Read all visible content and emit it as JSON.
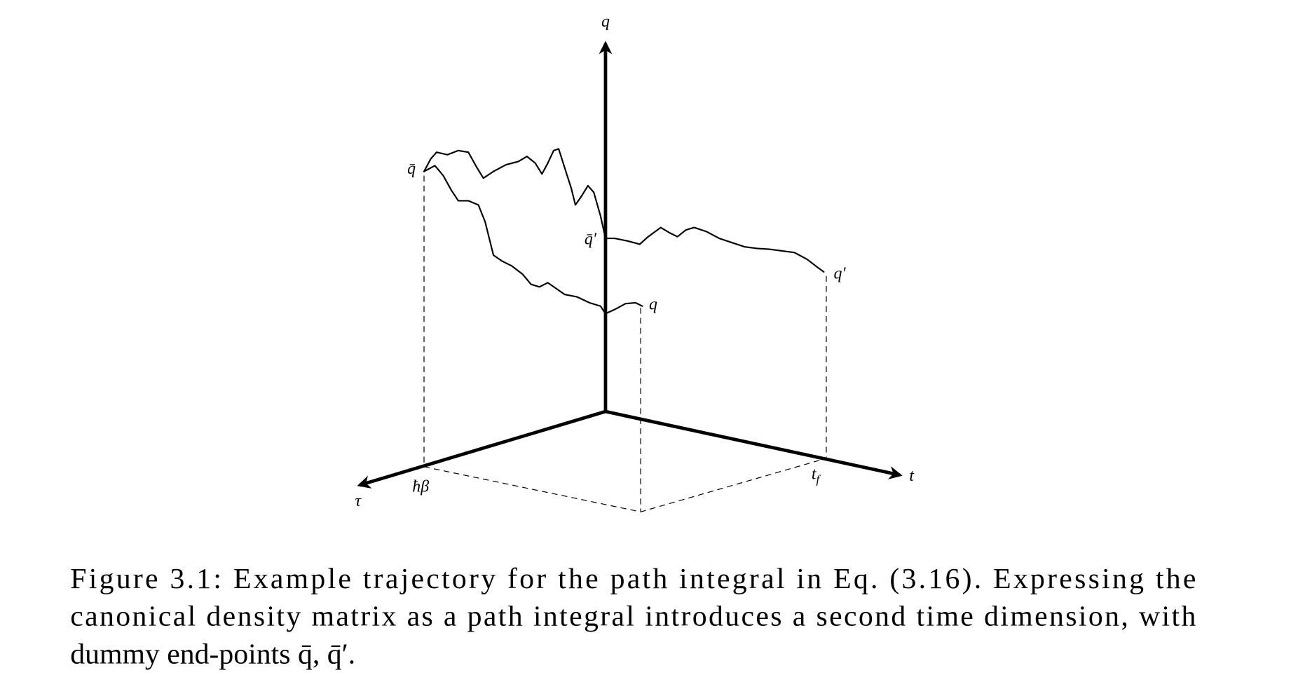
{
  "figure": {
    "labels": {
      "q_axis": "q",
      "q_bar": "q̄",
      "q_bar_prime": "q̄′",
      "q_end": "q",
      "q_prime": "q′",
      "tau": "τ",
      "hbar_beta": "ħβ",
      "t_f": {
        "base": "t",
        "sub": "f"
      },
      "t": "t"
    },
    "caption": {
      "lines": [
        "Figure 3.1: Example trajectory for the path integral in Eq. (3.16). Expressing the",
        "canonical density matrix as a path integral introduces a second time dimension, with",
        "dummy end-points q̄, q̄′."
      ]
    }
  }
}
